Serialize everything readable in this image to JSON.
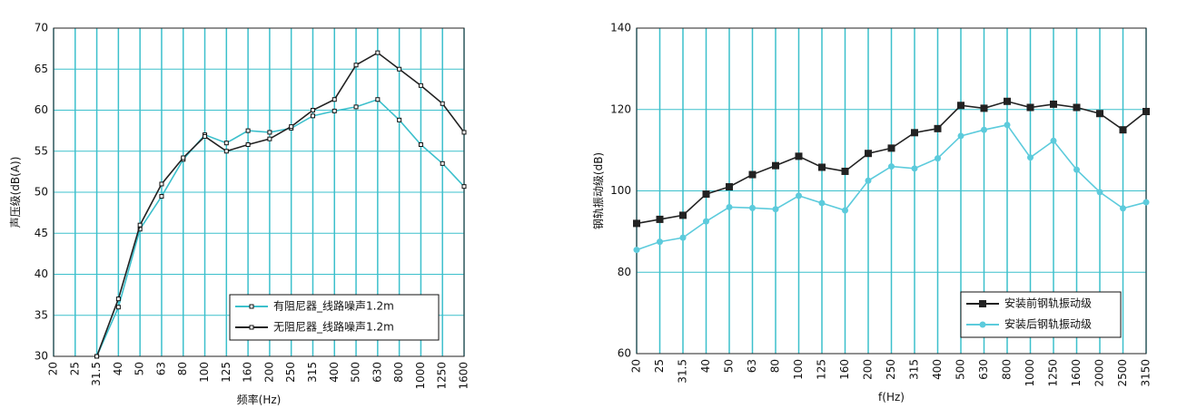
{
  "chart_data": [
    {
      "type": "line",
      "categories": [
        "20",
        "25",
        "31.5",
        "40",
        "50",
        "63",
        "80",
        "100",
        "125",
        "160",
        "200",
        "250",
        "315",
        "400",
        "500",
        "630",
        "800",
        "1000",
        "1250",
        "1600"
      ],
      "series": [
        {
          "name": "有阻尼器_线路噪声1.2m",
          "color": "#3cc0cc",
          "marker": "open-square",
          "values": [
            null,
            null,
            30,
            36,
            45.5,
            49.5,
            54,
            57,
            56,
            57.5,
            57.3,
            57.8,
            59.3,
            59.9,
            60.4,
            61.3,
            58.8,
            55.8,
            53.5,
            50.7
          ]
        },
        {
          "name": "无阻尼器_线路噪声1.2m",
          "color": "#222222",
          "marker": "open-square",
          "values": [
            null,
            null,
            30,
            37,
            46,
            51,
            54.2,
            56.8,
            55,
            55.8,
            56.5,
            58,
            60,
            61.3,
            65.5,
            67,
            65,
            63,
            60.8,
            57.3
          ]
        }
      ],
      "ylim": [
        30,
        70
      ],
      "yticks": [
        30,
        35,
        40,
        45,
        50,
        55,
        60,
        65,
        70
      ],
      "xlabel": "频率(Hz)",
      "ylabel": "声压级(dB(A))",
      "grid": true,
      "grid_color": "#3cc0cc",
      "legend": "lower right"
    },
    {
      "type": "line",
      "categories": [
        "20",
        "25",
        "31.5",
        "40",
        "50",
        "63",
        "80",
        "100",
        "125",
        "160",
        "200",
        "250",
        "315",
        "400",
        "500",
        "630",
        "800",
        "1000",
        "1250",
        "1600",
        "2000",
        "2500",
        "3150"
      ],
      "series": [
        {
          "name": "安装前钢轨振动级",
          "color": "#222222",
          "marker": "square",
          "values": [
            92,
            93,
            94,
            99.2,
            101,
            104,
            106.2,
            108.5,
            105.8,
            104.8,
            109.2,
            110.5,
            114.3,
            115.3,
            121,
            120.3,
            122,
            120.5,
            121.3,
            120.5,
            119,
            115,
            119.5
          ]
        },
        {
          "name": "安装后钢轨振动级",
          "color": "#5ccbdc",
          "marker": "circle",
          "values": [
            85.5,
            87.5,
            88.5,
            92.5,
            96,
            95.8,
            95.5,
            98.8,
            97,
            95.2,
            102.5,
            106,
            105.5,
            108,
            113.5,
            115,
            116.2,
            108.2,
            112.3,
            105.2,
            99.7,
            95.7,
            97.2
          ]
        }
      ],
      "ylim": [
        60,
        140
      ],
      "yticks": [
        60,
        80,
        100,
        120,
        140
      ],
      "xlabel": "f(Hz)",
      "ylabel": "钢轨振动级(dB)",
      "grid": true,
      "grid_color": "#3cc0cc",
      "legend": "lower right"
    }
  ]
}
